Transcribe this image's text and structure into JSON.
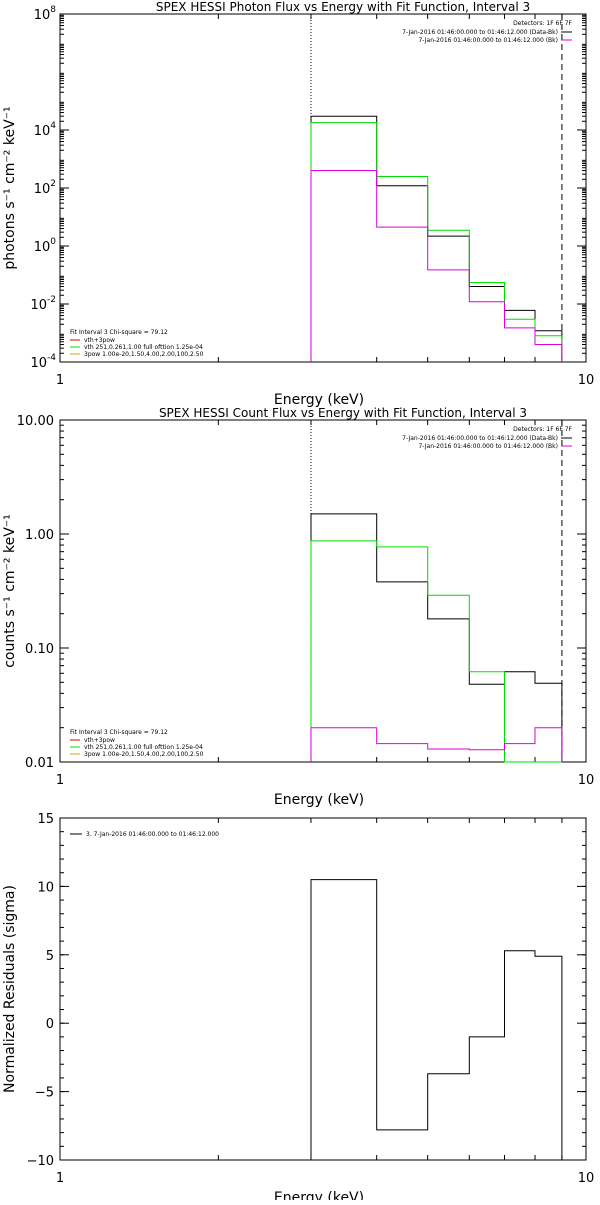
{
  "colors": {
    "black": "#000000",
    "green": "#00dd00",
    "magenta": "#dd00dd",
    "orange": "#e0a000",
    "red": "#dd0000"
  },
  "chart_data": [
    {
      "type": "line",
      "id": "photon",
      "title": "SPEX HESSI Photon Flux vs Energy with Fit Function, Interval 3",
      "xlabel": "Energy (keV)",
      "ylabel": "photons s⁻¹ cm⁻² keV⁻¹",
      "xscale": "log",
      "yscale": "log",
      "xlim": [
        1,
        10
      ],
      "ylim": [
        0.0001,
        100000000
      ],
      "grid": false,
      "x_ticks": [
        {
          "v": 1,
          "label": "1"
        },
        {
          "v": 10,
          "label": "10"
        }
      ],
      "y_ticks": [
        {
          "v": 0.0001,
          "base": "10",
          "exp": "-4"
        },
        {
          "v": 0.01,
          "base": "10",
          "exp": "-2"
        },
        {
          "v": 1,
          "base": "10",
          "exp": "0"
        },
        {
          "v": 100,
          "base": "10",
          "exp": "2"
        },
        {
          "v": 10000,
          "base": "10",
          "exp": "4"
        },
        {
          "v": 100000000,
          "base": "10",
          "exp": "8"
        }
      ],
      "vlines": [
        {
          "x": 3.0,
          "style": "dotted"
        },
        {
          "x": 9.0,
          "style": "dashed"
        }
      ],
      "bin_edges": [
        3.0,
        4.0,
        5.0,
        6.0,
        7.0,
        8.0,
        9.0
      ],
      "series": [
        {
          "color": "black",
          "values": [
            30000,
            120,
            2.2,
            0.04,
            0.006,
            0.0012
          ]
        },
        {
          "color": "green",
          "values": [
            18000,
            250,
            3.5,
            0.055,
            0.003,
            0.0008
          ]
        },
        {
          "color": "magenta",
          "values": [
            400,
            4.5,
            0.15,
            0.012,
            0.0015,
            0.0004
          ]
        }
      ],
      "info": {
        "header": "Detectors: 1F 6F 7F",
        "lines": [
          {
            "text": "7-Jan-2016 01:46:00.000 to 01:46:12.000 (Data-Bk)",
            "color": "black"
          },
          {
            "text": "7-Jan-2016 01:46:00.000 to 01:46:12.000 (Bk)",
            "color": "magenta"
          }
        ]
      },
      "legend": {
        "header": "Fit Interval 3   Chi-square = 79.12",
        "items": [
          {
            "text": "vth+3pow",
            "color": "red"
          },
          {
            "text": "vth 251,0.261,1.00  full ofttion 1.25e-04",
            "color": "green"
          },
          {
            "text": "3pow 1.00e-20,1.50,4.00,2.00,100,2.50",
            "color": "orange"
          }
        ]
      }
    },
    {
      "type": "line",
      "id": "count",
      "title": "SPEX HESSI Count Flux vs Energy with Fit Function, Interval 3",
      "xlabel": "Energy (keV)",
      "ylabel": "counts s⁻¹ cm⁻² keV⁻¹",
      "xscale": "log",
      "yscale": "log",
      "xlim": [
        1,
        10
      ],
      "ylim": [
        0.01,
        10
      ],
      "grid": false,
      "x_ticks": [
        {
          "v": 1,
          "label": "1"
        },
        {
          "v": 10,
          "label": "10"
        }
      ],
      "y_ticks": [
        {
          "v": 0.01,
          "label": "0.01"
        },
        {
          "v": 0.1,
          "label": "0.10"
        },
        {
          "v": 1,
          "label": "1.00"
        },
        {
          "v": 10,
          "label": "10.00"
        }
      ],
      "vlines": [
        {
          "x": 3.0,
          "style": "dotted"
        },
        {
          "x": 9.0,
          "style": "dashed"
        }
      ],
      "bin_edges": [
        3.0,
        4.0,
        5.0,
        6.0,
        7.0,
        8.0,
        9.0
      ],
      "series": [
        {
          "color": "black",
          "values": [
            1.5,
            0.38,
            0.18,
            0.048,
            0.062,
            0.049
          ]
        },
        {
          "color": "green",
          "values": [
            0.87,
            0.77,
            0.29,
            0.062,
            0.01,
            0.01
          ]
        },
        {
          "color": "magenta",
          "values": [
            0.02,
            0.0145,
            0.013,
            0.0128,
            0.0145,
            0.02
          ]
        }
      ],
      "info": {
        "header": "Detectors: 1F 6F 7F",
        "lines": [
          {
            "text": "7-Jan-2016 01:46:00.000 to 01:46:12.000 (Data-Bk)",
            "color": "black"
          },
          {
            "text": "7-Jan-2016 01:46:00.000 to 01:46:12.000 (Bk)",
            "color": "magenta"
          }
        ]
      },
      "legend": {
        "header": "Fit Interval 3   Chi-square = 79.12",
        "items": [
          {
            "text": "vth+3pow",
            "color": "red"
          },
          {
            "text": "vth 251,0.261,1.00  full ofttion 1.25e-04",
            "color": "green"
          },
          {
            "text": "3pow 1.00e-20,1.50,4.00,2.00,100,2.50",
            "color": "orange"
          }
        ]
      }
    },
    {
      "type": "line",
      "id": "residuals",
      "title": "",
      "xlabel": "Energy (keV)",
      "ylabel": "Normalized Residuals (sigma)",
      "xscale": "log",
      "yscale": "linear",
      "xlim": [
        1,
        10
      ],
      "ylim": [
        -10,
        15
      ],
      "grid": false,
      "x_ticks": [
        {
          "v": 1,
          "label": "1"
        },
        {
          "v": 10,
          "label": "10"
        }
      ],
      "y_ticks": [
        {
          "v": -10,
          "label": "−10"
        },
        {
          "v": -5,
          "label": "−5"
        },
        {
          "v": 0,
          "label": "0"
        },
        {
          "v": 5,
          "label": "5"
        },
        {
          "v": 10,
          "label": "10"
        },
        {
          "v": 15,
          "label": "15"
        }
      ],
      "vlines": [],
      "bin_edges": [
        3.0,
        4.0,
        5.0,
        6.0,
        7.0,
        8.0,
        9.0
      ],
      "series": [
        {
          "color": "black",
          "values": [
            10.5,
            -7.8,
            -3.7,
            -1.0,
            5.3,
            4.9
          ],
          "drop_to": -10
        }
      ],
      "info": null,
      "legend": {
        "header": "",
        "items": [
          {
            "text": "3.  7-Jan-2016 01:46:00.000 to 01:46:12.000",
            "color": "black"
          }
        ]
      }
    }
  ]
}
